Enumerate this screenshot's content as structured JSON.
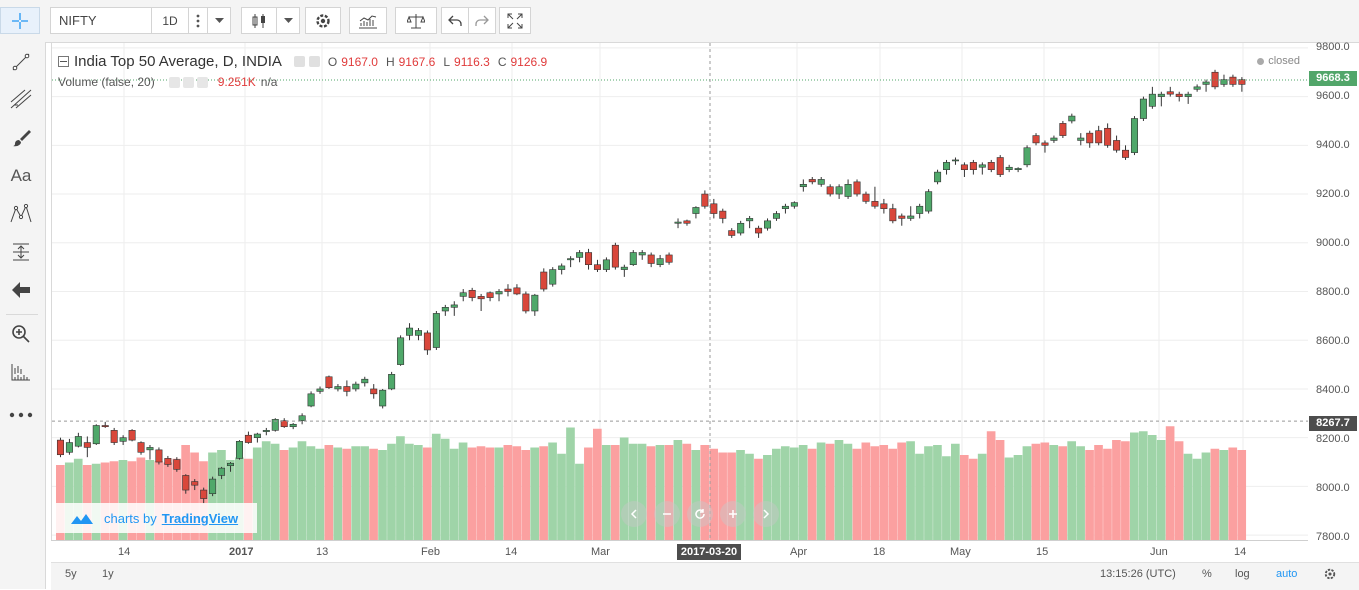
{
  "toolbar": {
    "symbol": "NIFTY",
    "interval": "1D"
  },
  "legend": {
    "title": "India Top 50 Average, D, INDIA",
    "o_label": "O",
    "o_val": "9167.0",
    "h_label": "H",
    "h_val": "9167.6",
    "l_label": "L",
    "l_val": "9116.3",
    "c_label": "C",
    "c_val": "9126.9",
    "volume_label": "Volume (false, 20)",
    "volume_val": "9.251K",
    "volume_na": "n/a",
    "status": "closed"
  },
  "price_axis": {
    "ticks": [
      "9800.0",
      "9600.0",
      "9400.0",
      "9200.0",
      "9000.0",
      "8800.0",
      "8600.0",
      "8400.0",
      "8200.0",
      "8000.0",
      "7800.0"
    ],
    "current_price": "9668.3",
    "crosshair_price": "8267.7"
  },
  "time_axis": {
    "ticks": [
      "14",
      "2017",
      "13",
      "Feb",
      "14",
      "Mar",
      "Apr",
      "18",
      "May",
      "15",
      "Jun",
      "14"
    ],
    "crosshair_date": "2017-03-20"
  },
  "watermark": {
    "text": "charts by",
    "brand": "TradingView"
  },
  "bottom_bar": {
    "range_5y": "5y",
    "range_1y": "1y",
    "clock": "13:15:26 (UTC)",
    "percent": "%",
    "log": "log",
    "auto": "auto"
  },
  "colors": {
    "up": "#4fa86a",
    "down": "#d9473b",
    "up_volume": "#9fd4a8",
    "down_volume": "#fba0a0",
    "accent": "#2196f3"
  },
  "chart_data": {
    "type": "candlestick",
    "symbol": "NIFTY",
    "ylim": [
      7780,
      9820
    ],
    "candles": [
      {
        "o": 8190,
        "h": 8200,
        "l": 8120,
        "c": 8130,
        "v": 6.0
      },
      {
        "o": 8140,
        "h": 8195,
        "l": 8130,
        "c": 8180,
        "v": 6.2
      },
      {
        "o": 8165,
        "h": 8220,
        "l": 8160,
        "c": 8205,
        "v": 6.5
      },
      {
        "o": 8180,
        "h": 8205,
        "l": 8120,
        "c": 8160,
        "v": 6.0
      },
      {
        "o": 8175,
        "h": 8255,
        "l": 8170,
        "c": 8250,
        "v": 6.1
      },
      {
        "o": 8250,
        "h": 8265,
        "l": 8240,
        "c": 8245,
        "v": 6.2
      },
      {
        "o": 8230,
        "h": 8240,
        "l": 8170,
        "c": 8180,
        "v": 6.3
      },
      {
        "o": 8185,
        "h": 8210,
        "l": 8170,
        "c": 8200,
        "v": 6.4
      },
      {
        "o": 8230,
        "h": 8235,
        "l": 8185,
        "c": 8190,
        "v": 6.3
      },
      {
        "o": 8180,
        "h": 8185,
        "l": 8130,
        "c": 8140,
        "v": 6.6
      },
      {
        "o": 8150,
        "h": 8170,
        "l": 8110,
        "c": 8160,
        "v": 6.4
      },
      {
        "o": 8150,
        "h": 8160,
        "l": 8090,
        "c": 8100,
        "v": 6.3
      },
      {
        "o": 8115,
        "h": 8125,
        "l": 8080,
        "c": 8090,
        "v": 6.2
      },
      {
        "o": 8110,
        "h": 8120,
        "l": 8060,
        "c": 8070,
        "v": 6.5
      },
      {
        "o": 8045,
        "h": 8050,
        "l": 7970,
        "c": 7985,
        "v": 7.6
      },
      {
        "o": 8020,
        "h": 8030,
        "l": 7985,
        "c": 8005,
        "v": 7.0
      },
      {
        "o": 7985,
        "h": 7995,
        "l": 7930,
        "c": 7950,
        "v": 6.3
      },
      {
        "o": 7970,
        "h": 8040,
        "l": 7960,
        "c": 8030,
        "v": 7.0
      },
      {
        "o": 8045,
        "h": 8080,
        "l": 8030,
        "c": 8075,
        "v": 7.2
      },
      {
        "o": 8085,
        "h": 8100,
        "l": 8060,
        "c": 8095,
        "v": 6.4
      },
      {
        "o": 8115,
        "h": 8190,
        "l": 8110,
        "c": 8185,
        "v": 6.6
      },
      {
        "o": 8210,
        "h": 8225,
        "l": 8175,
        "c": 8180,
        "v": 6.5
      },
      {
        "o": 8200,
        "h": 8220,
        "l": 8180,
        "c": 8215,
        "v": 7.4
      },
      {
        "o": 8225,
        "h": 8240,
        "l": 8210,
        "c": 8230,
        "v": 7.9
      },
      {
        "o": 8230,
        "h": 8280,
        "l": 8225,
        "c": 8275,
        "v": 7.7
      },
      {
        "o": 8270,
        "h": 8280,
        "l": 8240,
        "c": 8245,
        "v": 7.2
      },
      {
        "o": 8245,
        "h": 8260,
        "l": 8235,
        "c": 8255,
        "v": 7.4
      },
      {
        "o": 8270,
        "h": 8300,
        "l": 8255,
        "c": 8290,
        "v": 7.9
      },
      {
        "o": 8330,
        "h": 8390,
        "l": 8325,
        "c": 8380,
        "v": 7.5
      },
      {
        "o": 8390,
        "h": 8410,
        "l": 8380,
        "c": 8400,
        "v": 7.3
      },
      {
        "o": 8450,
        "h": 8455,
        "l": 8400,
        "c": 8405,
        "v": 7.6
      },
      {
        "o": 8400,
        "h": 8420,
        "l": 8390,
        "c": 8410,
        "v": 7.4
      },
      {
        "o": 8410,
        "h": 8435,
        "l": 8370,
        "c": 8390,
        "v": 7.3
      },
      {
        "o": 8400,
        "h": 8430,
        "l": 8390,
        "c": 8420,
        "v": 7.5
      },
      {
        "o": 8425,
        "h": 8450,
        "l": 8410,
        "c": 8440,
        "v": 7.5
      },
      {
        "o": 8400,
        "h": 8420,
        "l": 8360,
        "c": 8380,
        "v": 7.3
      },
      {
        "o": 8330,
        "h": 8400,
        "l": 8320,
        "c": 8395,
        "v": 7.2
      },
      {
        "o": 8400,
        "h": 8470,
        "l": 8395,
        "c": 8460,
        "v": 7.7
      },
      {
        "o": 8500,
        "h": 8620,
        "l": 8495,
        "c": 8610,
        "v": 8.3
      },
      {
        "o": 8620,
        "h": 8670,
        "l": 8600,
        "c": 8650,
        "v": 7.7
      },
      {
        "o": 8620,
        "h": 8650,
        "l": 8600,
        "c": 8640,
        "v": 7.6
      },
      {
        "o": 8630,
        "h": 8640,
        "l": 8540,
        "c": 8560,
        "v": 7.4
      },
      {
        "o": 8570,
        "h": 8720,
        "l": 8560,
        "c": 8710,
        "v": 8.5
      },
      {
        "o": 8720,
        "h": 8745,
        "l": 8700,
        "c": 8735,
        "v": 8.1
      },
      {
        "o": 8735,
        "h": 8760,
        "l": 8700,
        "c": 8745,
        "v": 7.3
      },
      {
        "o": 8780,
        "h": 8810,
        "l": 8760,
        "c": 8795,
        "v": 7.8
      },
      {
        "o": 8805,
        "h": 8815,
        "l": 8760,
        "c": 8775,
        "v": 7.4
      },
      {
        "o": 8780,
        "h": 8790,
        "l": 8720,
        "c": 8770,
        "v": 7.5
      },
      {
        "o": 8795,
        "h": 8800,
        "l": 8760,
        "c": 8775,
        "v": 7.4
      },
      {
        "o": 8790,
        "h": 8810,
        "l": 8760,
        "c": 8800,
        "v": 7.4
      },
      {
        "o": 8810,
        "h": 8830,
        "l": 8780,
        "c": 8800,
        "v": 7.6
      },
      {
        "o": 8815,
        "h": 8830,
        "l": 8785,
        "c": 8790,
        "v": 7.5
      },
      {
        "o": 8790,
        "h": 8800,
        "l": 8710,
        "c": 8720,
        "v": 7.2
      },
      {
        "o": 8720,
        "h": 8790,
        "l": 8700,
        "c": 8785,
        "v": 7.4
      },
      {
        "o": 8880,
        "h": 8895,
        "l": 8800,
        "c": 8810,
        "v": 7.5
      },
      {
        "o": 8830,
        "h": 8900,
        "l": 8820,
        "c": 8890,
        "v": 7.8
      },
      {
        "o": 8890,
        "h": 8915,
        "l": 8870,
        "c": 8905,
        "v": 6.9
      },
      {
        "o": 8930,
        "h": 8945,
        "l": 8900,
        "c": 8935,
        "v": 9.0
      },
      {
        "o": 8940,
        "h": 8970,
        "l": 8920,
        "c": 8960,
        "v": 6.1
      },
      {
        "o": 8960,
        "h": 8975,
        "l": 8890,
        "c": 8910,
        "v": 7.4
      },
      {
        "o": 8910,
        "h": 8930,
        "l": 8880,
        "c": 8890,
        "v": 8.9
      },
      {
        "o": 8890,
        "h": 8940,
        "l": 8880,
        "c": 8930,
        "v": 7.6
      },
      {
        "o": 8990,
        "h": 9000,
        "l": 8890,
        "c": 8900,
        "v": 7.6
      },
      {
        "o": 8890,
        "h": 8910,
        "l": 8860,
        "c": 8900,
        "v": 8.2
      },
      {
        "o": 8910,
        "h": 8970,
        "l": 8905,
        "c": 8960,
        "v": 7.7
      },
      {
        "o": 8950,
        "h": 8970,
        "l": 8930,
        "c": 8960,
        "v": 7.7
      },
      {
        "o": 8950,
        "h": 8960,
        "l": 8900,
        "c": 8915,
        "v": 7.5
      },
      {
        "o": 8910,
        "h": 8950,
        "l": 8900,
        "c": 8935,
        "v": 7.6
      },
      {
        "o": 8950,
        "h": 8960,
        "l": 8910,
        "c": 8920,
        "v": 7.6
      },
      {
        "o": 9080,
        "h": 9100,
        "l": 9060,
        "c": 9085,
        "v": 8.0
      },
      {
        "o": 9090,
        "h": 9095,
        "l": 9070,
        "c": 9080,
        "v": 7.7
      },
      {
        "o": 9120,
        "h": 9150,
        "l": 9100,
        "c": 9145,
        "v": 7.2
      },
      {
        "o": 9200,
        "h": 9215,
        "l": 9140,
        "c": 9150,
        "v": 7.6
      },
      {
        "o": 9160,
        "h": 9180,
        "l": 9100,
        "c": 9120,
        "v": 7.3
      },
      {
        "o": 9130,
        "h": 9140,
        "l": 9080,
        "c": 9100,
        "v": 7.0
      },
      {
        "o": 9050,
        "h": 9060,
        "l": 9020,
        "c": 9030,
        "v": 7.0
      },
      {
        "o": 9040,
        "h": 9090,
        "l": 9030,
        "c": 9080,
        "v": 7.2
      },
      {
        "o": 9090,
        "h": 9110,
        "l": 9060,
        "c": 9100,
        "v": 6.9
      },
      {
        "o": 9060,
        "h": 9070,
        "l": 9020,
        "c": 9040,
        "v": 6.5
      },
      {
        "o": 9060,
        "h": 9100,
        "l": 9050,
        "c": 9090,
        "v": 6.8
      },
      {
        "o": 9100,
        "h": 9130,
        "l": 9090,
        "c": 9120,
        "v": 7.3
      },
      {
        "o": 9140,
        "h": 9160,
        "l": 9120,
        "c": 9150,
        "v": 7.5
      },
      {
        "o": 9150,
        "h": 9170,
        "l": 9140,
        "c": 9165,
        "v": 7.4
      },
      {
        "o": 9230,
        "h": 9260,
        "l": 9210,
        "c": 9240,
        "v": 7.6
      },
      {
        "o": 9260,
        "h": 9270,
        "l": 9240,
        "c": 9250,
        "v": 7.3
      },
      {
        "o": 9240,
        "h": 9270,
        "l": 9230,
        "c": 9260,
        "v": 7.8
      },
      {
        "o": 9230,
        "h": 9240,
        "l": 9190,
        "c": 9200,
        "v": 7.7
      },
      {
        "o": 9200,
        "h": 9240,
        "l": 9180,
        "c": 9230,
        "v": 8.0
      },
      {
        "o": 9190,
        "h": 9260,
        "l": 9180,
        "c": 9240,
        "v": 7.7
      },
      {
        "o": 9250,
        "h": 9260,
        "l": 9190,
        "c": 9200,
        "v": 7.3
      },
      {
        "o": 9200,
        "h": 9210,
        "l": 9160,
        "c": 9170,
        "v": 7.8
      },
      {
        "o": 9170,
        "h": 9230,
        "l": 9140,
        "c": 9150,
        "v": 7.5
      },
      {
        "o": 9160,
        "h": 9180,
        "l": 9120,
        "c": 9140,
        "v": 7.6
      },
      {
        "o": 9140,
        "h": 9160,
        "l": 9080,
        "c": 9090,
        "v": 7.3
      },
      {
        "o": 9110,
        "h": 9120,
        "l": 9070,
        "c": 9100,
        "v": 7.8
      },
      {
        "o": 9100,
        "h": 9150,
        "l": 9090,
        "c": 9110,
        "v": 7.9
      },
      {
        "o": 9120,
        "h": 9160,
        "l": 9100,
        "c": 9150,
        "v": 6.9
      },
      {
        "o": 9130,
        "h": 9220,
        "l": 9120,
        "c": 9210,
        "v": 7.5
      },
      {
        "o": 9250,
        "h": 9300,
        "l": 9240,
        "c": 9290,
        "v": 7.6
      },
      {
        "o": 9300,
        "h": 9340,
        "l": 9280,
        "c": 9330,
        "v": 6.7
      },
      {
        "o": 9340,
        "h": 9350,
        "l": 9320,
        "c": 9340,
        "v": 7.7
      },
      {
        "o": 9320,
        "h": 9330,
        "l": 9270,
        "c": 9300,
        "v": 6.8
      },
      {
        "o": 9330,
        "h": 9340,
        "l": 9280,
        "c": 9300,
        "v": 6.5
      },
      {
        "o": 9310,
        "h": 9330,
        "l": 9280,
        "c": 9320,
        "v": 6.9
      },
      {
        "o": 9330,
        "h": 9340,
        "l": 9290,
        "c": 9300,
        "v": 8.7
      },
      {
        "o": 9350,
        "h": 9360,
        "l": 9270,
        "c": 9280,
        "v": 8.0
      },
      {
        "o": 9300,
        "h": 9320,
        "l": 9290,
        "c": 9310,
        "v": 6.6
      },
      {
        "o": 9300,
        "h": 9310,
        "l": 9290,
        "c": 9305,
        "v": 6.8
      },
      {
        "o": 9320,
        "h": 9400,
        "l": 9310,
        "c": 9390,
        "v": 7.5
      },
      {
        "o": 9440,
        "h": 9450,
        "l": 9400,
        "c": 9410,
        "v": 7.7
      },
      {
        "o": 9410,
        "h": 9420,
        "l": 9370,
        "c": 9400,
        "v": 7.8
      },
      {
        "o": 9420,
        "h": 9440,
        "l": 9410,
        "c": 9430,
        "v": 7.6
      },
      {
        "o": 9490,
        "h": 9500,
        "l": 9430,
        "c": 9440,
        "v": 7.5
      },
      {
        "o": 9500,
        "h": 9530,
        "l": 9490,
        "c": 9520,
        "v": 7.9
      },
      {
        "o": 9420,
        "h": 9450,
        "l": 9400,
        "c": 9430,
        "v": 7.5
      },
      {
        "o": 9450,
        "h": 9460,
        "l": 9390,
        "c": 9410,
        "v": 7.2
      },
      {
        "o": 9460,
        "h": 9480,
        "l": 9400,
        "c": 9410,
        "v": 7.6
      },
      {
        "o": 9470,
        "h": 9490,
        "l": 9390,
        "c": 9400,
        "v": 7.3
      },
      {
        "o": 9420,
        "h": 9440,
        "l": 9370,
        "c": 9380,
        "v": 8.0
      },
      {
        "o": 9380,
        "h": 9400,
        "l": 9340,
        "c": 9350,
        "v": 7.9
      },
      {
        "o": 9370,
        "h": 9520,
        "l": 9360,
        "c": 9510,
        "v": 8.6
      },
      {
        "o": 9510,
        "h": 9600,
        "l": 9500,
        "c": 9590,
        "v": 8.7
      },
      {
        "o": 9560,
        "h": 9640,
        "l": 9550,
        "c": 9610,
        "v": 8.4
      },
      {
        "o": 9600,
        "h": 9620,
        "l": 9560,
        "c": 9610,
        "v": 8.0
      },
      {
        "o": 9620,
        "h": 9640,
        "l": 9600,
        "c": 9610,
        "v": 9.1
      },
      {
        "o": 9610,
        "h": 9620,
        "l": 9580,
        "c": 9600,
        "v": 7.9
      },
      {
        "o": 9600,
        "h": 9620,
        "l": 9570,
        "c": 9610,
        "v": 6.9
      },
      {
        "o": 9630,
        "h": 9650,
        "l": 9620,
        "c": 9640,
        "v": 6.5
      },
      {
        "o": 9650,
        "h": 9670,
        "l": 9620,
        "c": 9660,
        "v": 7.0
      },
      {
        "o": 9700,
        "h": 9710,
        "l": 9630,
        "c": 9640,
        "v": 7.3
      },
      {
        "o": 9650,
        "h": 9690,
        "l": 9640,
        "c": 9670,
        "v": 7.2
      },
      {
        "o": 9680,
        "h": 9690,
        "l": 9640,
        "c": 9650,
        "v": 7.4
      },
      {
        "o": 9670,
        "h": 9680,
        "l": 9620,
        "c": 9650,
        "v": 7.2
      }
    ]
  }
}
